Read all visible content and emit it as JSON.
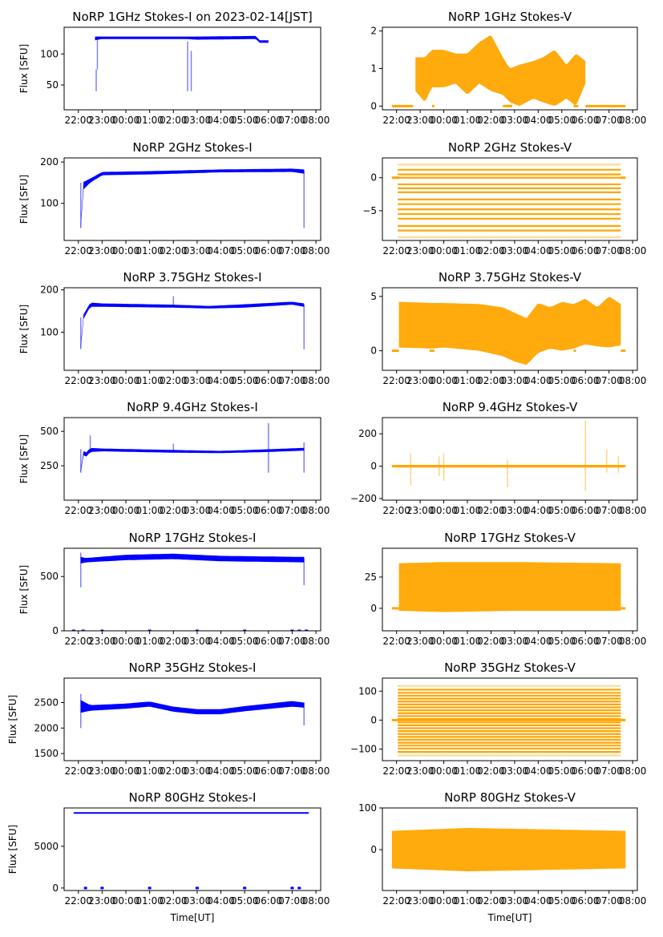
{
  "chart_data": {
    "type": "scatter",
    "figure_layout": "7 rows x 2 columns",
    "x_tick_labels": [
      "22:00",
      "23:00",
      "00:00",
      "01:00",
      "02:00",
      "03:00",
      "04:00",
      "05:00",
      "06:00",
      "07:00",
      "08:00"
    ],
    "x_tick_labels_rendered": [
      "22:0",
      "23:0",
      "00:0",
      "01:0",
      "02:0",
      "03:0",
      "04:0",
      "05:0",
      "06:0",
      "07:0",
      "08:00"
    ],
    "x_range_hours_from_22": [
      -0.6,
      10.2
    ],
    "xlabel": "Time[UT]",
    "colors": {
      "stokes_i": "#0000ff",
      "stokes_v": "#ffa500"
    },
    "panels": [
      {
        "id": "1ghz-i",
        "title": "NoRP 1GHz Stokes-I on 2023-02-14[JST]",
        "ylabel": "Flux [SFU]",
        "stokes": "I",
        "ylim": [
          10,
          143
        ],
        "yticks": [
          50,
          100
        ],
        "bands": [
          [
            0.7,
            122,
            128
          ],
          [
            1.0,
            124,
            128
          ],
          [
            4.5,
            124,
            128
          ],
          [
            5.0,
            123,
            128
          ],
          [
            7.5,
            124,
            129
          ],
          [
            7.6,
            118,
            122
          ],
          [
            8.0,
            118,
            122
          ]
        ],
        "spikes": [
          [
            0.75,
            40,
            75
          ],
          [
            0.8,
            75,
            122
          ],
          [
            4.6,
            40,
            120
          ],
          [
            4.75,
            40,
            105
          ]
        ]
      },
      {
        "id": "1ghz-v",
        "title": "NoRP 1GHz Stokes-V",
        "ylabel": "",
        "stokes": "V",
        "ylim": [
          -0.1,
          2.1
        ],
        "yticks": [
          0,
          1,
          2
        ],
        "flat": [
          [
            -0.2,
            0.7
          ],
          [
            1.5,
            1.6
          ],
          [
            4.5,
            4.9
          ],
          [
            7.5,
            7.7
          ],
          [
            8.0,
            9.7
          ]
        ],
        "bands": [
          [
            0.8,
            0.4,
            1.3
          ],
          [
            1.2,
            0.1,
            1.3
          ],
          [
            1.5,
            0.5,
            1.5
          ],
          [
            2.0,
            0.5,
            1.5
          ],
          [
            2.5,
            0.6,
            1.4
          ],
          [
            3.0,
            0.3,
            1.4
          ],
          [
            3.5,
            0.6,
            1.7
          ],
          [
            4.0,
            0.4,
            1.9
          ],
          [
            4.5,
            0.3,
            1.3
          ],
          [
            4.8,
            0.1,
            1.0
          ],
          [
            5.2,
            0.0,
            1.1
          ],
          [
            5.8,
            0.2,
            1.2
          ],
          [
            6.2,
            0.1,
            1.3
          ],
          [
            6.7,
            0.0,
            1.5
          ],
          [
            7.2,
            0.2,
            1.1
          ],
          [
            7.6,
            0.0,
            1.4
          ],
          [
            8.0,
            0.6,
            1.2
          ]
        ]
      },
      {
        "id": "2ghz-i",
        "title": "NoRP 2GHz Stokes-I",
        "ylabel": "Flux [SFU]",
        "stokes": "I",
        "ylim": [
          10,
          210
        ],
        "yticks": [
          100,
          200
        ],
        "bands": [
          [
            0.1,
            40,
            50
          ],
          [
            0.15,
            130,
            150
          ],
          [
            0.5,
            150,
            160
          ],
          [
            1.0,
            168,
            176
          ],
          [
            3.0,
            170,
            178
          ],
          [
            6.0,
            175,
            182
          ],
          [
            9.0,
            176,
            184
          ],
          [
            9.5,
            172,
            182
          ]
        ],
        "spikes": [
          [
            0.1,
            40,
            150
          ],
          [
            9.5,
            40,
            180
          ]
        ]
      },
      {
        "id": "2ghz-v",
        "title": "NoRP 2GHz Stokes-V",
        "ylabel": "",
        "stokes": "V",
        "ylim": [
          -9.5,
          3
        ],
        "yticks": [
          -5,
          0
        ],
        "flat": [
          [
            -0.2,
            0.1
          ],
          [
            9.5,
            9.7
          ]
        ],
        "levels": [
          2,
          1.2,
          0.5,
          0,
          -1,
          -1.6,
          -2.2,
          -3.3,
          -4,
          -4.8,
          -5.5,
          -6.2,
          -7.3,
          -8,
          -9
        ],
        "level_span": [
          0.05,
          9.5
        ]
      },
      {
        "id": "3p75ghz-i",
        "title": "NoRP 3.75GHz Stokes-I",
        "ylabel": "Flux [SFU]",
        "stokes": "I",
        "ylim": [
          10,
          205
        ],
        "yticks": [
          100,
          200
        ],
        "bands": [
          [
            0.1,
            60,
            70
          ],
          [
            0.15,
            125,
            135
          ],
          [
            0.5,
            160,
            170
          ],
          [
            1.0,
            160,
            168
          ],
          [
            4.0,
            158,
            165
          ],
          [
            5.5,
            156,
            162
          ],
          [
            7.0,
            158,
            166
          ],
          [
            9.0,
            165,
            172
          ],
          [
            9.5,
            160,
            168
          ]
        ],
        "spikes": [
          [
            0.1,
            60,
            135
          ],
          [
            4.0,
            160,
            185
          ],
          [
            9.5,
            60,
            165
          ]
        ]
      },
      {
        "id": "3p75ghz-v",
        "title": "NoRP 3.75GHz Stokes-V",
        "ylabel": "",
        "stokes": "V",
        "ylim": [
          -1.8,
          5.8
        ],
        "yticks": [
          0,
          5
        ],
        "flat": [
          [
            -0.2,
            0.1
          ],
          [
            1.4,
            1.6
          ],
          [
            4.5,
            4.7
          ],
          [
            7.5,
            7.6
          ],
          [
            9.5,
            9.7
          ]
        ],
        "bands": [
          [
            0.1,
            0.3,
            4.5
          ],
          [
            1.5,
            0.2,
            4.4
          ],
          [
            2.0,
            0.3,
            4.4
          ],
          [
            3.5,
            0.0,
            4.3
          ],
          [
            4.5,
            -0.5,
            4.0
          ],
          [
            5.0,
            -1.0,
            3.5
          ],
          [
            5.5,
            -1.3,
            3.0
          ],
          [
            6.0,
            -0.2,
            4.4
          ],
          [
            6.5,
            0.2,
            4.0
          ],
          [
            7.0,
            0.0,
            4.5
          ],
          [
            7.5,
            0.2,
            4.3
          ],
          [
            8.0,
            0.6,
            4.8
          ],
          [
            8.5,
            0.4,
            4.0
          ],
          [
            9.0,
            0.3,
            5.0
          ],
          [
            9.5,
            0.5,
            4.3
          ]
        ]
      },
      {
        "id": "9p4ghz-i",
        "title": "NoRP 9.4GHz Stokes-I",
        "ylabel": "Flux [SFU]",
        "stokes": "I",
        "ylim": [
          0,
          600
        ],
        "yticks": [
          250,
          500
        ],
        "bands": [
          [
            0.1,
            200,
            220
          ],
          [
            0.15,
            340,
            370
          ],
          [
            0.3,
            310,
            340
          ],
          [
            0.5,
            350,
            380
          ],
          [
            1.0,
            355,
            375
          ],
          [
            4.0,
            345,
            365
          ],
          [
            6.0,
            342,
            358
          ],
          [
            8.0,
            350,
            370
          ],
          [
            9.5,
            360,
            380
          ]
        ],
        "spikes": [
          [
            0.1,
            200,
            370
          ],
          [
            0.5,
            350,
            470
          ],
          [
            4.0,
            350,
            410
          ],
          [
            8.0,
            200,
            560
          ],
          [
            9.5,
            200,
            420
          ]
        ]
      },
      {
        "id": "9p4ghz-v",
        "title": "NoRP 9.4GHz Stokes-V",
        "ylabel": "",
        "stokes": "V",
        "ylim": [
          -210,
          300
        ],
        "yticks": [
          -200,
          0,
          200
        ],
        "flat": [
          [
            -0.2,
            9.7
          ]
        ],
        "bands": [
          [
            0.0,
            -8,
            8
          ],
          [
            9.6,
            -8,
            8
          ]
        ],
        "spikes": [
          [
            0.6,
            -120,
            80
          ],
          [
            1.8,
            -60,
            60
          ],
          [
            2.0,
            -90,
            80
          ],
          [
            4.7,
            -130,
            40
          ],
          [
            8.0,
            -150,
            280
          ],
          [
            8.9,
            -40,
            100
          ],
          [
            9.4,
            -40,
            60
          ]
        ]
      },
      {
        "id": "17ghz-i",
        "title": "NoRP 17GHz Stokes-I",
        "ylabel": "Flux [SFU]",
        "stokes": "I",
        "ylim": [
          0,
          760
        ],
        "yticks": [
          0,
          500
        ],
        "bands": [
          [
            0.1,
            620,
            680
          ],
          [
            0.3,
            630,
            670
          ],
          [
            2.0,
            650,
            700
          ],
          [
            4.0,
            660,
            710
          ],
          [
            6.0,
            640,
            690
          ],
          [
            9.5,
            630,
            680
          ]
        ],
        "spikes": [
          [
            0.1,
            400,
            720
          ],
          [
            9.5,
            420,
            670
          ]
        ],
        "zero_dots": [
          -0.2,
          0.2,
          1.0,
          3.0,
          5.0,
          7.0,
          9.0,
          9.3,
          9.6
        ]
      },
      {
        "id": "17ghz-v",
        "title": "NoRP 17GHz Stokes-V",
        "ylabel": "",
        "stokes": "V",
        "ylim": [
          -18,
          48
        ],
        "yticks": [
          0,
          25
        ],
        "flat": [
          [
            -0.2,
            0.1
          ],
          [
            9.5,
            9.7
          ]
        ],
        "bands": [
          [
            0.1,
            -2,
            36
          ],
          [
            2.0,
            -3,
            37
          ],
          [
            5.0,
            -2,
            37
          ],
          [
            9.5,
            -2,
            36
          ]
        ]
      },
      {
        "id": "35ghz-i",
        "title": "NoRP 35GHz Stokes-I",
        "ylabel": "Flux [SFU]",
        "stokes": "I",
        "ylim": [
          1360,
          2980
        ],
        "yticks": [
          1500,
          2000,
          2500
        ],
        "bands": [
          [
            0.1,
            2300,
            2550
          ],
          [
            0.5,
            2340,
            2450
          ],
          [
            2.0,
            2380,
            2480
          ],
          [
            3.0,
            2420,
            2520
          ],
          [
            4.0,
            2320,
            2420
          ],
          [
            5.0,
            2270,
            2370
          ],
          [
            6.0,
            2270,
            2370
          ],
          [
            7.0,
            2330,
            2430
          ],
          [
            9.0,
            2420,
            2530
          ],
          [
            9.5,
            2400,
            2500
          ]
        ],
        "spikes": [
          [
            0.1,
            2000,
            2670
          ],
          [
            9.5,
            2050,
            2500
          ]
        ]
      },
      {
        "id": "35ghz-v",
        "title": "NoRP 35GHz Stokes-V",
        "ylabel": "",
        "stokes": "V",
        "ylim": [
          -140,
          145
        ],
        "yticks": [
          -100,
          0,
          100
        ],
        "flat": [
          [
            -0.2,
            9.7
          ]
        ],
        "levels": [
          118,
          105,
          94,
          84,
          74,
          64,
          54,
          44,
          34,
          24,
          14,
          4,
          -8,
          -18,
          -28,
          -38,
          -48,
          -58,
          -68,
          -78,
          -88,
          -98,
          -110,
          -122
        ],
        "level_span": [
          0.05,
          9.5
        ]
      },
      {
        "id": "80ghz-i",
        "title": "NoRP 80GHz Stokes-I",
        "ylabel": "Flux [SFU]",
        "stokes": "I",
        "ylim": [
          -300,
          9600
        ],
        "yticks": [
          0,
          5000
        ],
        "bands": [
          [
            -0.2,
            8900,
            9100
          ],
          [
            9.7,
            8900,
            9100
          ]
        ],
        "zero_dots": [
          0.3,
          1.0,
          3.0,
          5.0,
          7.0,
          9.0,
          9.3
        ]
      },
      {
        "id": "80ghz-v",
        "title": "NoRP 80GHz Stokes-V",
        "ylabel": "",
        "stokes": "V",
        "ylim": [
          -98,
          100
        ],
        "yticks": [
          0,
          100
        ],
        "bands": [
          [
            -0.2,
            -45,
            45
          ],
          [
            3.0,
            -52,
            52
          ],
          [
            5.0,
            -50,
            50
          ],
          [
            9.7,
            -45,
            45
          ]
        ]
      }
    ]
  }
}
